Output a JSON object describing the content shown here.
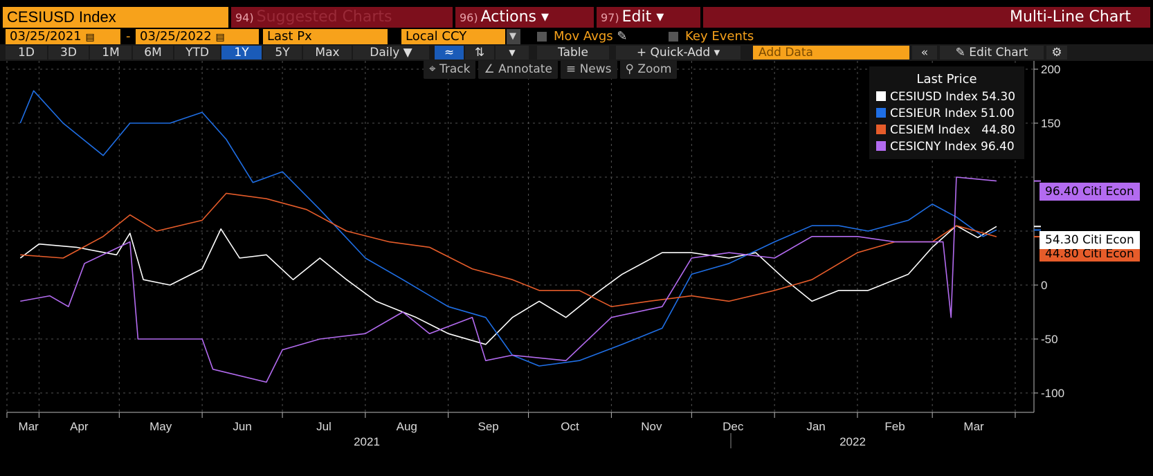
{
  "header": {
    "ticker": "CESIUSD Index",
    "suggested_num": "94)",
    "suggested_label": "Suggested Charts",
    "actions_num": "96)",
    "actions_label": "Actions ▾",
    "edit_num": "97)",
    "edit_label": "Edit ▾",
    "chart_type": "Multi-Line Chart"
  },
  "date_range": {
    "start": "03/25/2021",
    "end": "03/25/2022",
    "field": "Last Px",
    "currency": "Local CCY",
    "mov_avgs": "Mov Avgs",
    "key_events": "Key Events"
  },
  "toolbar": {
    "periods": [
      "1D",
      "3D",
      "1M",
      "6M",
      "YTD",
      "1Y",
      "5Y",
      "Max"
    ],
    "active_period": "1Y",
    "frequency": "Daily ▼",
    "table": "Table",
    "quick_add": "+ Quick-Add ▾",
    "add_data_placeholder": "Add Data",
    "edit_chart": "Edit Chart"
  },
  "subtools": [
    "Track",
    "Annotate",
    "News",
    "Zoom"
  ],
  "colors": {
    "accent": "#f7a21b",
    "bar": "#7d0f1c",
    "active_tab": "#1a5bb8"
  },
  "chart_data": {
    "type": "line",
    "title": "Last Price",
    "ylim": [
      -115,
      200
    ],
    "yticks": [
      200,
      150,
      0,
      -50,
      -100
    ],
    "x_months": [
      "Mar",
      "Apr",
      "May",
      "Jun",
      "Jul",
      "Aug",
      "Sep",
      "Oct",
      "Nov",
      "Dec",
      "Jan",
      "Feb",
      "Mar"
    ],
    "x_years": [
      "2021",
      "2022"
    ],
    "grid": true,
    "legend_position": "top-right",
    "series": [
      {
        "name": "CESIUSD Index",
        "last": "54.30",
        "color": "#ffffff",
        "tag": "54.30 Citi Econ",
        "points": [
          [
            "2021-03-25",
            25
          ],
          [
            "2021-04-01",
            38
          ],
          [
            "2021-04-15",
            35
          ],
          [
            "2021-04-30",
            28
          ],
          [
            "2021-05-05",
            48
          ],
          [
            "2021-05-10",
            5
          ],
          [
            "2021-05-20",
            0
          ],
          [
            "2021-06-01",
            15
          ],
          [
            "2021-06-08",
            52
          ],
          [
            "2021-06-15",
            25
          ],
          [
            "2021-06-25",
            28
          ],
          [
            "2021-07-05",
            5
          ],
          [
            "2021-07-15",
            25
          ],
          [
            "2021-07-25",
            5
          ],
          [
            "2021-08-05",
            -15
          ],
          [
            "2021-08-20",
            -30
          ],
          [
            "2021-09-01",
            -45
          ],
          [
            "2021-09-15",
            -55
          ],
          [
            "2021-09-25",
            -30
          ],
          [
            "2021-10-05",
            -15
          ],
          [
            "2021-10-15",
            -30
          ],
          [
            "2021-10-25",
            -10
          ],
          [
            "2021-11-05",
            10
          ],
          [
            "2021-11-20",
            30
          ],
          [
            "2021-12-01",
            30
          ],
          [
            "2021-12-15",
            25
          ],
          [
            "2021-12-25",
            30
          ],
          [
            "2022-01-05",
            5
          ],
          [
            "2022-01-15",
            -15
          ],
          [
            "2022-01-25",
            -5
          ],
          [
            "2022-02-05",
            -5
          ],
          [
            "2022-02-20",
            10
          ],
          [
            "2022-03-01",
            35
          ],
          [
            "2022-03-10",
            55
          ],
          [
            "2022-03-18",
            44
          ],
          [
            "2022-03-25",
            54.3
          ]
        ]
      },
      {
        "name": "CESIEUR Index",
        "last": "51.00",
        "color": "#1f6fe6",
        "tag": "",
        "points": [
          [
            "2021-03-25",
            150
          ],
          [
            "2021-03-30",
            180
          ],
          [
            "2021-04-10",
            150
          ],
          [
            "2021-04-25",
            120
          ],
          [
            "2021-05-05",
            150
          ],
          [
            "2021-05-20",
            150
          ],
          [
            "2021-06-01",
            160
          ],
          [
            "2021-06-10",
            135
          ],
          [
            "2021-06-20",
            95
          ],
          [
            "2021-07-01",
            105
          ],
          [
            "2021-07-15",
            70
          ],
          [
            "2021-08-01",
            25
          ],
          [
            "2021-08-15",
            5
          ],
          [
            "2021-09-01",
            -20
          ],
          [
            "2021-09-15",
            -30
          ],
          [
            "2021-09-25",
            -65
          ],
          [
            "2021-10-05",
            -75
          ],
          [
            "2021-10-20",
            -70
          ],
          [
            "2021-11-05",
            -55
          ],
          [
            "2021-11-20",
            -40
          ],
          [
            "2021-12-01",
            10
          ],
          [
            "2021-12-15",
            20
          ],
          [
            "2022-01-01",
            40
          ],
          [
            "2022-01-15",
            55
          ],
          [
            "2022-01-25",
            55
          ],
          [
            "2022-02-05",
            50
          ],
          [
            "2022-02-20",
            60
          ],
          [
            "2022-03-01",
            75
          ],
          [
            "2022-03-10",
            63
          ],
          [
            "2022-03-20",
            45
          ],
          [
            "2022-03-25",
            51
          ]
        ]
      },
      {
        "name": "CESIEM Index",
        "last": "44.80",
        "color": "#e65c2a",
        "tag": "44.80 Citi Econ",
        "points": [
          [
            "2021-03-25",
            28
          ],
          [
            "2021-04-10",
            25
          ],
          [
            "2021-04-25",
            45
          ],
          [
            "2021-05-05",
            65
          ],
          [
            "2021-05-15",
            50
          ],
          [
            "2021-06-01",
            60
          ],
          [
            "2021-06-10",
            85
          ],
          [
            "2021-06-25",
            80
          ],
          [
            "2021-07-10",
            70
          ],
          [
            "2021-07-25",
            50
          ],
          [
            "2021-08-10",
            40
          ],
          [
            "2021-08-25",
            35
          ],
          [
            "2021-09-10",
            15
          ],
          [
            "2021-09-25",
            5
          ],
          [
            "2021-10-05",
            -5
          ],
          [
            "2021-10-20",
            -5
          ],
          [
            "2021-11-01",
            -20
          ],
          [
            "2021-11-15",
            -15
          ],
          [
            "2021-12-01",
            -10
          ],
          [
            "2021-12-15",
            -15
          ],
          [
            "2022-01-01",
            -5
          ],
          [
            "2022-01-15",
            5
          ],
          [
            "2022-02-01",
            30
          ],
          [
            "2022-02-15",
            40
          ],
          [
            "2022-03-01",
            40
          ],
          [
            "2022-03-10",
            55
          ],
          [
            "2022-03-25",
            44.8
          ]
        ]
      },
      {
        "name": "CESICNY Index",
        "last": "96.40",
        "color": "#b36bf0",
        "tag": "96.40 Citi Econ",
        "points": [
          [
            "2021-03-25",
            -15
          ],
          [
            "2021-04-05",
            -10
          ],
          [
            "2021-04-12",
            -20
          ],
          [
            "2021-04-18",
            20
          ],
          [
            "2021-05-05",
            40
          ],
          [
            "2021-05-08",
            -50
          ],
          [
            "2021-06-01",
            -50
          ],
          [
            "2021-06-05",
            -78
          ],
          [
            "2021-06-25",
            -90
          ],
          [
            "2021-07-01",
            -60
          ],
          [
            "2021-07-15",
            -50
          ],
          [
            "2021-08-01",
            -45
          ],
          [
            "2021-08-15",
            -25
          ],
          [
            "2021-08-25",
            -45
          ],
          [
            "2021-09-10",
            -30
          ],
          [
            "2021-09-15",
            -70
          ],
          [
            "2021-09-25",
            -65
          ],
          [
            "2021-10-15",
            -70
          ],
          [
            "2021-11-01",
            -30
          ],
          [
            "2021-11-20",
            -20
          ],
          [
            "2021-12-01",
            25
          ],
          [
            "2021-12-15",
            30
          ],
          [
            "2022-01-01",
            25
          ],
          [
            "2022-01-15",
            45
          ],
          [
            "2022-02-01",
            45
          ],
          [
            "2022-02-15",
            40
          ],
          [
            "2022-03-05",
            40
          ],
          [
            "2022-03-08",
            -30
          ],
          [
            "2022-03-10",
            100
          ],
          [
            "2022-03-25",
            96.4
          ]
        ]
      }
    ]
  }
}
